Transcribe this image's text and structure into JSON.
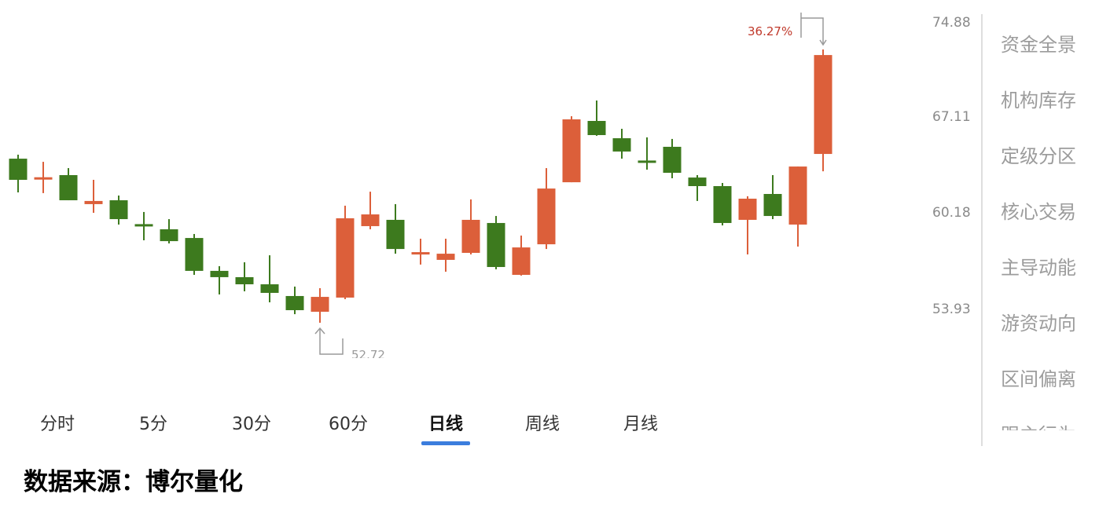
{
  "colors": {
    "up": "#dc5f3a",
    "down": "#3d7a1e",
    "accent": "#3b7ddd",
    "annotation_up": "#c0392b",
    "annotation_gray": "#9a9a9a"
  },
  "chart_data": {
    "type": "candlestick",
    "yticks": [
      "74.88",
      "67.11",
      "60.18",
      "53.93"
    ],
    "grid": false,
    "candles": [
      {
        "o": 64.2,
        "h": 64.48,
        "l": 61.84,
        "c": 62.72
      },
      {
        "o": 62.88,
        "h": 63.98,
        "l": 61.79,
        "c": 62.9
      },
      {
        "o": 63.05,
        "h": 63.54,
        "l": 61.29,
        "c": 61.29
      },
      {
        "o": 61.02,
        "h": 62.72,
        "l": 60.41,
        "c": 61.24
      },
      {
        "o": 61.29,
        "h": 61.62,
        "l": 59.59,
        "c": 59.97
      },
      {
        "o": 59.62,
        "h": 60.47,
        "l": 58.49,
        "c": 59.59
      },
      {
        "o": 59.26,
        "h": 59.97,
        "l": 58.27,
        "c": 58.43
      },
      {
        "o": 58.65,
        "h": 58.93,
        "l": 56.07,
        "c": 56.35
      },
      {
        "o": 56.35,
        "h": 56.68,
        "l": 54.7,
        "c": 55.91
      },
      {
        "o": 55.91,
        "h": 56.95,
        "l": 54.92,
        "c": 55.41
      },
      {
        "o": 55.41,
        "h": 57.44,
        "l": 54.15,
        "c": 54.81
      },
      {
        "o": 54.59,
        "h": 55.25,
        "l": 53.32,
        "c": 53.6
      },
      {
        "o": 53.49,
        "h": 55.14,
        "l": 52.72,
        "c": 54.53
      },
      {
        "o": 54.48,
        "h": 60.91,
        "l": 54.37,
        "c": 60.03
      },
      {
        "o": 59.48,
        "h": 61.89,
        "l": 59.26,
        "c": 60.3
      },
      {
        "o": 59.92,
        "h": 61.02,
        "l": 57.55,
        "c": 57.88
      },
      {
        "o": 57.64,
        "h": 58.6,
        "l": 56.79,
        "c": 57.66
      },
      {
        "o": 57.12,
        "h": 58.6,
        "l": 56.29,
        "c": 57.55
      },
      {
        "o": 57.61,
        "h": 61.35,
        "l": 57.5,
        "c": 59.92
      },
      {
        "o": 59.7,
        "h": 60.19,
        "l": 56.46,
        "c": 56.62
      },
      {
        "o": 56.07,
        "h": 58.82,
        "l": 56.02,
        "c": 57.99
      },
      {
        "o": 58.21,
        "h": 63.54,
        "l": 57.88,
        "c": 62.11
      },
      {
        "o": 62.55,
        "h": 67.17,
        "l": 62.55,
        "c": 66.95
      },
      {
        "o": 66.84,
        "h": 68.27,
        "l": 65.8,
        "c": 65.85
      },
      {
        "o": 65.63,
        "h": 66.29,
        "l": 64.2,
        "c": 64.7
      },
      {
        "o": 64.07,
        "h": 65.69,
        "l": 63.43,
        "c": 64.04
      },
      {
        "o": 65.03,
        "h": 65.58,
        "l": 62.83,
        "c": 63.21
      },
      {
        "o": 62.88,
        "h": 63.05,
        "l": 61.24,
        "c": 62.28
      },
      {
        "o": 62.28,
        "h": 62.5,
        "l": 59.53,
        "c": 59.7
      },
      {
        "o": 59.92,
        "h": 61.57,
        "l": 57.5,
        "c": 61.4
      },
      {
        "o": 61.73,
        "h": 63.05,
        "l": 59.97,
        "c": 60.19
      },
      {
        "o": 59.59,
        "h": 63.65,
        "l": 58.05,
        "c": 63.65
      },
      {
        "o": 64.53,
        "h": 71.84,
        "l": 63.32,
        "c": 71.45
      }
    ],
    "annotations": {
      "high_change": "36.27%",
      "low_value": "52.72"
    }
  },
  "sidebar": {
    "items": [
      "资金全景",
      "机构库存",
      "定级分区",
      "核心交易",
      "主导动能",
      "游资动向",
      "区间偏离",
      "跟主行为"
    ]
  },
  "tabs": [
    {
      "label": "分时",
      "active": false
    },
    {
      "label": "5分",
      "active": false
    },
    {
      "label": "30分",
      "active": false
    },
    {
      "label": "60分",
      "active": false
    },
    {
      "label": "日线",
      "active": true
    },
    {
      "label": "周线",
      "active": false
    },
    {
      "label": "月线",
      "active": false
    }
  ],
  "footer": "数据来源：博尔量化"
}
